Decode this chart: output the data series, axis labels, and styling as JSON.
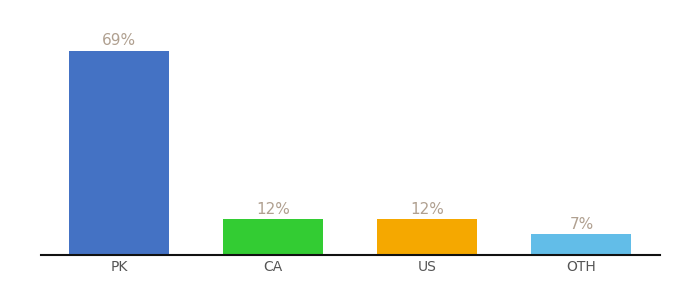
{
  "categories": [
    "PK",
    "CA",
    "US",
    "OTH"
  ],
  "values": [
    69,
    12,
    12,
    7
  ],
  "labels": [
    "69%",
    "12%",
    "12%",
    "7%"
  ],
  "bar_colors": [
    "#4472c4",
    "#33cc33",
    "#f5a800",
    "#62bde8"
  ],
  "background_color": "#ffffff",
  "ylim": [
    0,
    78
  ],
  "bar_width": 0.65,
  "label_fontsize": 11,
  "tick_fontsize": 10,
  "label_color": "#b0a090"
}
